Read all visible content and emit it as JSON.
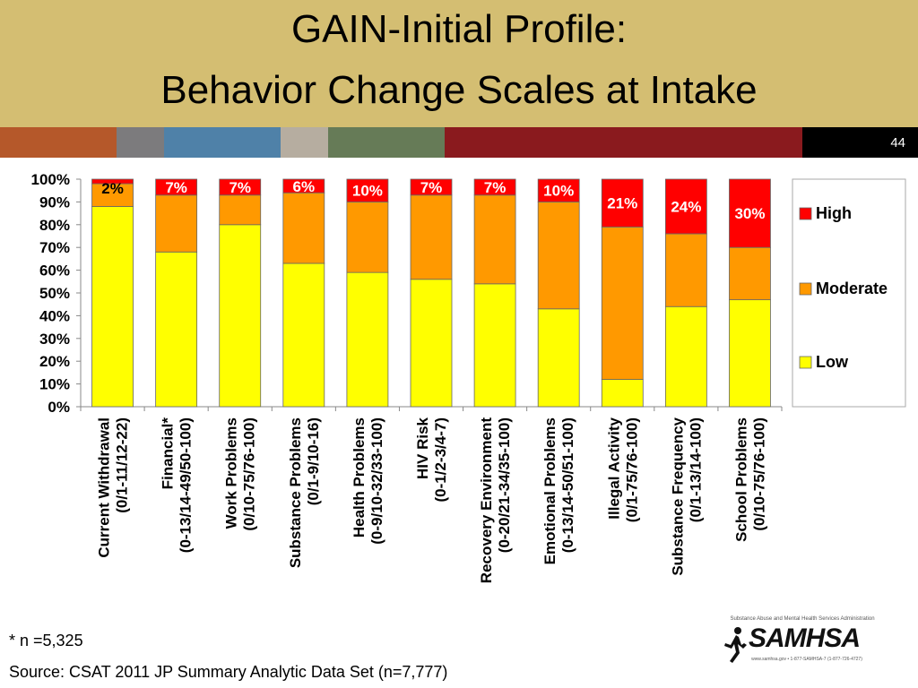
{
  "slide": {
    "title_line_1": "GAIN-Initial Profile:",
    "title_line_2": "Behavior Change Scales at Intake",
    "slide_number": "44",
    "footnote": "* n =5,325",
    "source": "Source: CSAT 2011 JP Summary Analytic Data Set (n=7,777)",
    "logo": {
      "tagline": "Substance Abuse and Mental Health Services Administration",
      "name": "SAMHSA",
      "contact": "www.samhsa.gov • 1-877-SAMHSA-7 (1-877-726-4727)"
    }
  },
  "colors": {
    "title_band": "#d4be72",
    "stripe": [
      "#b5582a",
      "#7c7b7d",
      "#4f81a8",
      "#b6ada0",
      "#667b57",
      "#8a1a1e",
      "#ede3c4"
    ],
    "low": "#ffff00",
    "moderate": "#ff9900",
    "high": "#ff0000"
  },
  "chart_data": {
    "type": "bar",
    "stacked": true,
    "categories": [
      [
        "Current Withdrawal",
        "(0/1-11/12-22)"
      ],
      [
        "Financial*",
        "(0-13/14-49/50-100)"
      ],
      [
        "Work Problems",
        "(0/10-75/76-100)"
      ],
      [
        "Substance Problems",
        "(0/1-9/10-16)"
      ],
      [
        "Health Problems",
        "(0-9/10-32/33-100)"
      ],
      [
        "HIV Risk",
        "(0-1/2-3/4-7)"
      ],
      [
        "Recovery Environment",
        "(0-20/21-34/35-100)"
      ],
      [
        "Emotional Problems",
        "(0-13/14-50/51-100)"
      ],
      [
        "Illegal Activity",
        "(0/1-75/76-100)"
      ],
      [
        "Substance Frequency",
        "(0/1-13/14-100)"
      ],
      [
        "School Problems",
        "(0/10-75/76-100)"
      ]
    ],
    "series": [
      {
        "name": "Low",
        "values": [
          88,
          68,
          80,
          63,
          59,
          56,
          54,
          43,
          12,
          44,
          47
        ]
      },
      {
        "name": "Moderate",
        "values": [
          10,
          25,
          13,
          31,
          31,
          37,
          39,
          47,
          67,
          32,
          23
        ]
      },
      {
        "name": "High",
        "values": [
          2,
          7,
          7,
          6,
          10,
          7,
          7,
          10,
          21,
          24,
          30
        ]
      }
    ],
    "data_labels": [
      "2%",
      "7%",
      "7%",
      "6%",
      "10%",
      "7%",
      "7%",
      "10%",
      "21%",
      "24%",
      "30%"
    ],
    "y_ticks": [
      "0%",
      "10%",
      "20%",
      "30%",
      "40%",
      "50%",
      "60%",
      "70%",
      "80%",
      "90%",
      "100%"
    ],
    "ylim": [
      0,
      100
    ],
    "legend": [
      "High",
      "Moderate",
      "Low"
    ],
    "legend_position": "right",
    "grid": false
  }
}
